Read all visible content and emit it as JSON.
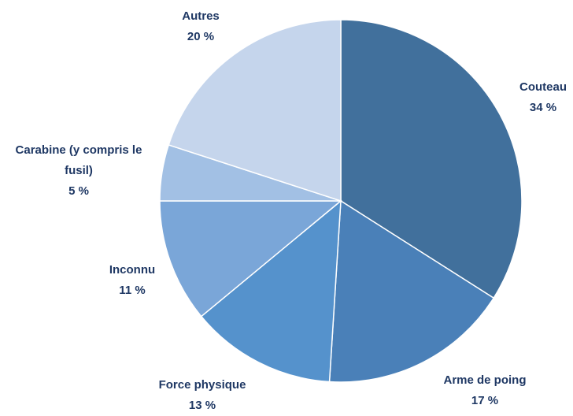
{
  "chart_data": {
    "type": "pie",
    "categories": [
      "Couteau",
      "Arme de poing",
      "Force physique",
      "Inconnu",
      "Carabine (y compris le fusil)",
      "Autres"
    ],
    "values": [
      34,
      17,
      13,
      11,
      5,
      20
    ],
    "value_labels": [
      "34 %",
      "17 %",
      "13 %",
      "11 %",
      "5 %",
      "20 %"
    ],
    "colors": [
      "#41709c",
      "#4a80b8",
      "#5592cc",
      "#7aa6d8",
      "#a2c0e4",
      "#c5d5ec"
    ]
  }
}
